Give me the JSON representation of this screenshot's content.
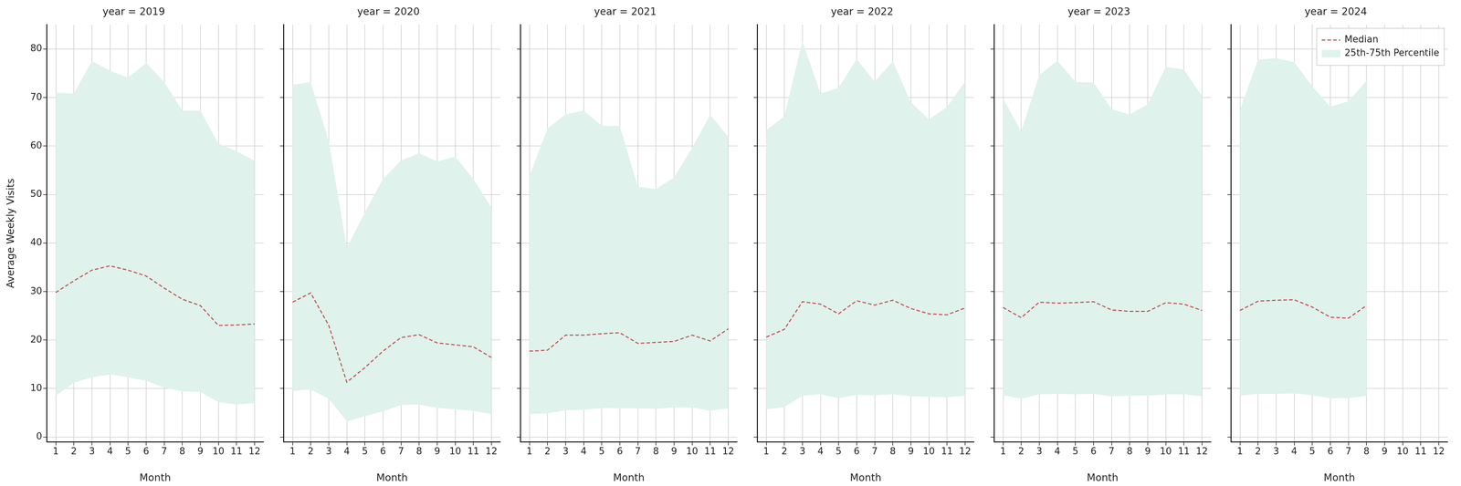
{
  "chart_data": [
    {
      "type": "line",
      "title": "year = 2019",
      "x_label": "Month",
      "y_label": "Average Weekly Visits",
      "x": [
        1,
        2,
        3,
        4,
        5,
        6,
        7,
        8,
        9,
        10,
        11,
        12
      ],
      "xlim": [
        0.5,
        12.5
      ],
      "xticks": [
        1,
        2,
        3,
        4,
        5,
        6,
        7,
        8,
        9,
        10,
        11,
        12
      ],
      "ylim": [
        -1,
        85
      ],
      "yticks": [
        0,
        10,
        20,
        30,
        40,
        50,
        60,
        70,
        80
      ],
      "grid": true,
      "series": [
        {
          "name": "Median",
          "type": "line",
          "color": "#c44e52",
          "line_style": "dashed",
          "values": [
            29.8,
            32.2,
            34.4,
            35.3,
            34.4,
            33.2,
            30.7,
            28.4,
            27.1,
            23.0,
            23.1,
            23.3
          ]
        },
        {
          "name": "25th-75th Percentile",
          "type": "area",
          "color": "#dff2ec",
          "lower": [
            8.5,
            11.2,
            12.3,
            12.9,
            12.3,
            11.6,
            10.2,
            9.4,
            9.3,
            7.2,
            6.7,
            7.0
          ],
          "upper": [
            71.0,
            70.8,
            77.5,
            75.5,
            74.1,
            77.1,
            73.2,
            67.3,
            67.3,
            60.5,
            58.9,
            57.0
          ]
        }
      ]
    },
    {
      "type": "line",
      "title": "year = 2020",
      "x_label": "Month",
      "tick_labels": "x",
      "x": [
        1,
        2,
        3,
        4,
        5,
        6,
        7,
        8,
        9,
        10,
        11,
        12
      ],
      "xlim": [
        0.5,
        12.5
      ],
      "xticks": [
        1,
        2,
        3,
        4,
        5,
        6,
        7,
        8,
        9,
        10,
        11,
        12
      ],
      "ylim": [
        -1,
        85
      ],
      "yticks": [
        0,
        10,
        20,
        30,
        40,
        50,
        60,
        70,
        80
      ],
      "grid": true,
      "series": [
        {
          "name": "Median",
          "type": "line",
          "color": "#c44e52",
          "line_style": "dashed",
          "values": [
            27.8,
            29.7,
            23.0,
            11.3,
            14.3,
            17.7,
            20.5,
            21.1,
            19.4,
            19.0,
            18.6,
            16.4
          ]
        },
        {
          "name": "25th-75th Percentile",
          "type": "area",
          "color": "#dff2ec",
          "lower": [
            9.5,
            9.8,
            7.9,
            3.2,
            4.3,
            5.3,
            6.6,
            6.7,
            6.0,
            5.7,
            5.4,
            4.7
          ],
          "upper": [
            72.6,
            73.2,
            61.0,
            39.0,
            46.3,
            53.2,
            57.0,
            58.5,
            56.8,
            57.8,
            53.2,
            47.3
          ]
        }
      ]
    },
    {
      "type": "line",
      "title": "year = 2021",
      "x_label": "Month",
      "tick_labels": "x",
      "x": [
        1,
        2,
        3,
        4,
        5,
        6,
        7,
        8,
        9,
        10,
        11,
        12
      ],
      "xlim": [
        0.5,
        12.5
      ],
      "xticks": [
        1,
        2,
        3,
        4,
        5,
        6,
        7,
        8,
        9,
        10,
        11,
        12
      ],
      "ylim": [
        -1,
        85
      ],
      "yticks": [
        0,
        10,
        20,
        30,
        40,
        50,
        60,
        70,
        80
      ],
      "grid": true,
      "series": [
        {
          "name": "Median",
          "type": "line",
          "color": "#c44e52",
          "line_style": "dashed",
          "values": [
            17.7,
            17.9,
            21.0,
            21.0,
            21.3,
            21.5,
            19.3,
            19.5,
            19.7,
            21.0,
            19.8,
            22.3
          ]
        },
        {
          "name": "25th-75th Percentile",
          "type": "area",
          "color": "#dff2ec",
          "lower": [
            4.7,
            4.9,
            5.5,
            5.6,
            6.0,
            5.9,
            5.9,
            5.8,
            6.1,
            6.1,
            5.4,
            5.9
          ],
          "upper": [
            53.8,
            63.6,
            66.5,
            67.3,
            64.2,
            64.1,
            51.6,
            51.1,
            53.5,
            59.6,
            66.4,
            61.9
          ]
        }
      ]
    },
    {
      "type": "line",
      "title": "year = 2022",
      "x_label": "Month",
      "tick_labels": "x",
      "x": [
        1,
        2,
        3,
        4,
        5,
        6,
        7,
        8,
        9,
        10,
        11,
        12
      ],
      "xlim": [
        0.5,
        12.5
      ],
      "xticks": [
        1,
        2,
        3,
        4,
        5,
        6,
        7,
        8,
        9,
        10,
        11,
        12
      ],
      "ylim": [
        -1,
        85
      ],
      "yticks": [
        0,
        10,
        20,
        30,
        40,
        50,
        60,
        70,
        80
      ],
      "grid": true,
      "series": [
        {
          "name": "Median",
          "type": "line",
          "color": "#c44e52",
          "line_style": "dashed",
          "values": [
            20.6,
            22.2,
            27.9,
            27.4,
            25.4,
            28.1,
            27.2,
            28.2,
            26.5,
            25.4,
            25.2,
            26.6
          ]
        },
        {
          "name": "25th-75th Percentile",
          "type": "area",
          "color": "#dff2ec",
          "lower": [
            5.7,
            6.2,
            8.5,
            8.8,
            8.0,
            8.7,
            8.6,
            8.8,
            8.4,
            8.3,
            8.2,
            8.5
          ],
          "upper": [
            63.3,
            66.1,
            81.6,
            70.8,
            72.0,
            77.9,
            73.3,
            77.4,
            69.0,
            65.5,
            68.0,
            73.3
          ]
        }
      ]
    },
    {
      "type": "line",
      "title": "year = 2023",
      "x_label": "Month",
      "tick_labels": "x",
      "x": [
        1,
        2,
        3,
        4,
        5,
        6,
        7,
        8,
        9,
        10,
        11,
        12
      ],
      "xlim": [
        0.5,
        12.5
      ],
      "xticks": [
        1,
        2,
        3,
        4,
        5,
        6,
        7,
        8,
        9,
        10,
        11,
        12
      ],
      "ylim": [
        -1,
        85
      ],
      "yticks": [
        0,
        10,
        20,
        30,
        40,
        50,
        60,
        70,
        80
      ],
      "grid": true,
      "series": [
        {
          "name": "Median",
          "type": "line",
          "color": "#c44e52",
          "line_style": "dashed",
          "values": [
            26.7,
            24.6,
            27.8,
            27.6,
            27.7,
            27.9,
            26.2,
            25.9,
            25.9,
            27.7,
            27.4,
            26.1
          ]
        },
        {
          "name": "25th-75th Percentile",
          "type": "area",
          "color": "#dff2ec",
          "lower": [
            8.6,
            7.9,
            8.8,
            8.9,
            8.8,
            8.9,
            8.4,
            8.5,
            8.5,
            8.8,
            8.8,
            8.4
          ],
          "upper": [
            69.8,
            63.0,
            74.6,
            77.6,
            73.2,
            73.1,
            67.6,
            66.5,
            68.6,
            76.3,
            75.8,
            70.3
          ]
        }
      ]
    },
    {
      "type": "line",
      "title": "year = 2024",
      "x_label": "Month",
      "tick_labels": "x",
      "legend": "upper right",
      "x": [
        1,
        2,
        3,
        4,
        5,
        6,
        7,
        8,
        9,
        10,
        11,
        12
      ],
      "xlim": [
        0.5,
        12.5
      ],
      "xticks": [
        1,
        2,
        3,
        4,
        5,
        6,
        7,
        8,
        9,
        10,
        11,
        12
      ],
      "ylim": [
        -1,
        85
      ],
      "yticks": [
        0,
        10,
        20,
        30,
        40,
        50,
        60,
        70,
        80
      ],
      "grid": true,
      "series": [
        {
          "name": "Median",
          "type": "line",
          "color": "#c44e52",
          "line_style": "dashed",
          "values": [
            26.1,
            28.0,
            28.2,
            28.3,
            26.8,
            24.7,
            24.5,
            27.1,
            null,
            null,
            null,
            null
          ]
        },
        {
          "name": "25th-75th Percentile",
          "type": "area",
          "color": "#dff2ec",
          "lower": [
            8.5,
            8.9,
            8.9,
            9.0,
            8.6,
            8.0,
            8.0,
            8.5,
            null,
            null,
            null,
            null
          ],
          "upper": [
            67.4,
            77.8,
            78.1,
            77.3,
            72.3,
            68.1,
            69.2,
            73.4,
            null,
            null,
            null,
            null
          ]
        }
      ]
    }
  ]
}
